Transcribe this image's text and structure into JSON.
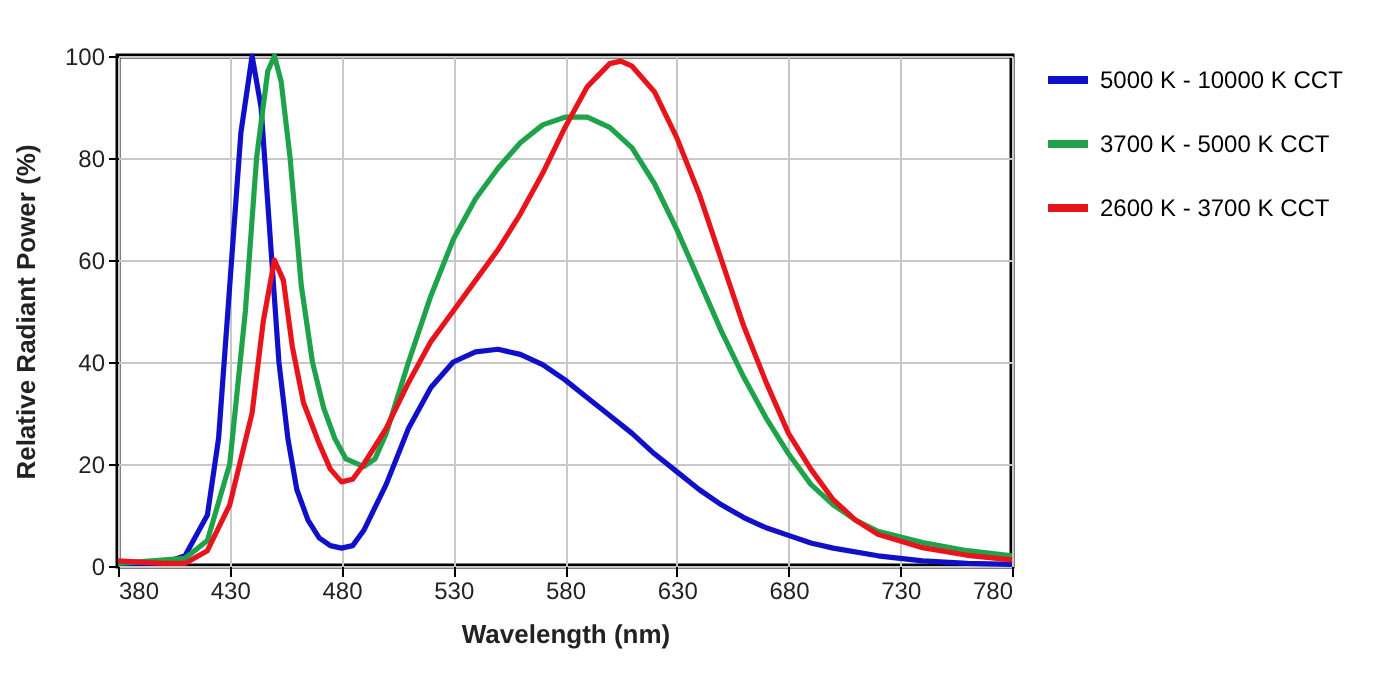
{
  "chart_data": {
    "type": "line",
    "xlabel": "Wavelength (nm)",
    "ylabel": "Relative Radiant Power (%)",
    "xlim": [
      380,
      780
    ],
    "xticks": [
      380,
      430,
      480,
      530,
      580,
      630,
      680,
      730,
      780
    ],
    "ylim": [
      0,
      100
    ],
    "yticks": [
      0,
      20,
      40,
      60,
      80,
      100
    ],
    "grid": true,
    "legend": "right",
    "marker": "none",
    "line_style": "solid",
    "series": [
      {
        "name": "5000 K - 10000 K CCT",
        "color": "#1010c8",
        "x": [
          380,
          400,
          410,
          420,
          425,
          430,
          435,
          440,
          444,
          448,
          452,
          456,
          460,
          465,
          470,
          475,
          480,
          485,
          490,
          500,
          510,
          520,
          530,
          540,
          550,
          560,
          570,
          580,
          590,
          600,
          610,
          620,
          630,
          640,
          650,
          660,
          670,
          680,
          690,
          700,
          720,
          740,
          760,
          780
        ],
        "values": [
          0.5,
          0.5,
          2,
          10,
          25,
          55,
          85,
          100,
          90,
          65,
          40,
          25,
          15,
          9,
          5.5,
          4,
          3.5,
          4,
          7,
          16,
          27,
          35,
          40,
          42,
          42.5,
          41.5,
          39.5,
          36.5,
          33,
          29.5,
          26,
          22,
          18.5,
          15,
          12,
          9.5,
          7.5,
          6,
          4.5,
          3.5,
          2,
          1,
          0.5,
          0.3
        ]
      },
      {
        "name": "3700 K - 5000 K CCT",
        "color": "#1fa34a",
        "x": [
          380,
          410,
          420,
          430,
          437,
          442,
          447,
          450,
          453,
          457,
          462,
          467,
          472,
          477,
          482,
          490,
          495,
          500,
          510,
          520,
          530,
          540,
          550,
          560,
          570,
          580,
          590,
          600,
          610,
          620,
          630,
          640,
          650,
          660,
          670,
          680,
          690,
          700,
          710,
          720,
          740,
          760,
          780
        ],
        "values": [
          0.5,
          1.5,
          5,
          20,
          50,
          80,
          97,
          100,
          95,
          80,
          55,
          40,
          31,
          25,
          21,
          19.5,
          21,
          26,
          40,
          53,
          64,
          72,
          78,
          83,
          86.5,
          88,
          88,
          86,
          82,
          75,
          66,
          56,
          46,
          37,
          29,
          22,
          16,
          12,
          9,
          6.8,
          4.6,
          3,
          2
        ]
      },
      {
        "name": "2600 K - 3700 K CCT",
        "color": "#e8141c",
        "x": [
          380,
          400,
          410,
          420,
          430,
          440,
          445,
          450,
          454,
          458,
          463,
          470,
          475,
          480,
          485,
          490,
          500,
          510,
          520,
          530,
          540,
          550,
          560,
          570,
          580,
          590,
          600,
          605,
          610,
          620,
          630,
          640,
          650,
          660,
          670,
          680,
          690,
          700,
          710,
          720,
          740,
          760,
          780
        ],
        "values": [
          1,
          0.5,
          0.5,
          3,
          12,
          30,
          48,
          60,
          56,
          43,
          32,
          24,
          19,
          16.5,
          17,
          20,
          27,
          36,
          44,
          50,
          56,
          62,
          69,
          77,
          86,
          94,
          98.5,
          99,
          98,
          93,
          84,
          73,
          60,
          47,
          36,
          26,
          19,
          13,
          9,
          6.2,
          3.6,
          2.1,
          1.2
        ]
      }
    ]
  }
}
